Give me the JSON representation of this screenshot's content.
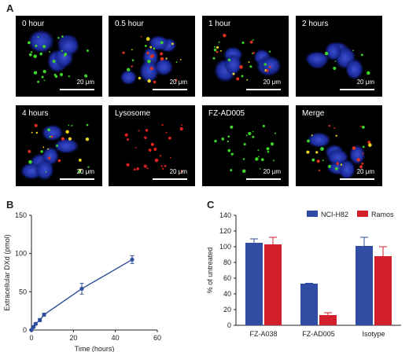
{
  "panels": {
    "a": "A",
    "b": "B",
    "c": "C"
  },
  "microscopy": {
    "scale_label": "20 μm",
    "tiles": [
      {
        "label": "0 hour"
      },
      {
        "label": "0.5 hour"
      },
      {
        "label": "1 hour"
      },
      {
        "label": "2 hours"
      },
      {
        "label": "4 hours"
      },
      {
        "label": "Lysosome"
      },
      {
        "label": "FZ-AD005"
      },
      {
        "label": "Merge"
      }
    ]
  },
  "chart_data": [
    {
      "type": "line",
      "xlabel": "Time (hours)",
      "ylabel": "Extracellular DXd (pmol)",
      "xlim": [
        0,
        60
      ],
      "ylim": [
        0,
        150
      ],
      "xticks": [
        0,
        20,
        40,
        60
      ],
      "yticks": [
        0,
        50,
        100,
        150
      ],
      "color": "#2d4e9a",
      "x": [
        0,
        1,
        2,
        4,
        6,
        24,
        48
      ],
      "y": [
        0,
        4,
        8,
        13,
        20,
        54,
        92
      ],
      "err": [
        0,
        1,
        1.5,
        2,
        2,
        7,
        5
      ]
    },
    {
      "type": "bar",
      "ylabel": "% of untreated",
      "ylim": [
        0,
        140
      ],
      "yticks": [
        0,
        20,
        40,
        60,
        80,
        100,
        120,
        140
      ],
      "categories": [
        "FZ-A038",
        "FZ-AD005",
        "Isotype"
      ],
      "legend_position": "top-right",
      "series": [
        {
          "name": "NCI-H82",
          "color": "#2f4ea3",
          "values": [
            105,
            53,
            101
          ],
          "err": [
            5,
            0.5,
            11
          ]
        },
        {
          "name": "Ramos",
          "color": "#d1202b",
          "values": [
            103,
            13,
            88
          ],
          "err": [
            9,
            3,
            12
          ]
        }
      ]
    }
  ]
}
